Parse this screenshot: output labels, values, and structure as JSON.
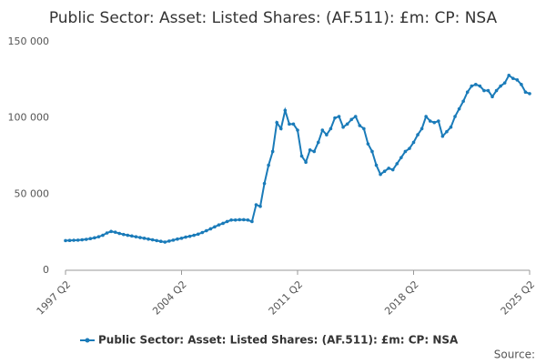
{
  "chart_data": {
    "type": "line",
    "title": "Public Sector: Asset: Listed Shares: (AF.511): £m: CP: NSA",
    "categories": [
      "1997 Q2",
      null,
      null,
      null,
      null,
      null,
      null,
      null,
      null,
      null,
      null,
      null,
      null,
      null,
      null,
      null,
      null,
      null,
      null,
      null,
      null,
      null,
      null,
      null,
      null,
      null,
      null,
      null,
      "2004 Q2",
      null,
      null,
      null,
      null,
      null,
      null,
      null,
      null,
      null,
      null,
      null,
      null,
      null,
      null,
      null,
      null,
      null,
      null,
      null,
      null,
      null,
      null,
      null,
      null,
      null,
      null,
      null,
      "2011 Q2",
      null,
      null,
      null,
      null,
      null,
      null,
      null,
      null,
      null,
      null,
      null,
      null,
      null,
      null,
      null,
      null,
      null,
      null,
      null,
      null,
      null,
      null,
      null,
      null,
      null,
      null,
      null,
      "2018 Q2",
      null,
      null,
      null,
      null,
      null,
      null,
      null,
      null,
      null,
      null,
      null,
      null,
      null,
      null,
      null,
      null,
      null,
      null,
      null,
      null,
      null,
      null,
      null,
      null,
      null,
      null,
      null,
      "2025 Q2"
    ],
    "series": [
      {
        "name": "Public Sector: Asset: Listed Shares: (AF.511): £m: CP: NSA",
        "color": "#1a7bb9",
        "values": [
          19500,
          19600,
          19700,
          19800,
          20000,
          20300,
          20800,
          21300,
          22000,
          23000,
          24500,
          25500,
          25000,
          24200,
          23500,
          23000,
          22500,
          22000,
          21500,
          21000,
          20500,
          20000,
          19500,
          19000,
          18500,
          19200,
          19800,
          20500,
          21000,
          21800,
          22300,
          23000,
          23700,
          24800,
          26000,
          27200,
          28500,
          29800,
          30800,
          32000,
          33000,
          33000,
          33200,
          33200,
          33000,
          32000,
          43000,
          42000,
          57000,
          69000,
          78000,
          97000,
          93000,
          105000,
          96000,
          96000,
          92000,
          75000,
          71000,
          79000,
          78000,
          84000,
          92000,
          89000,
          93000,
          100000,
          101000,
          94000,
          96000,
          99000,
          101000,
          95000,
          93000,
          83000,
          78000,
          69000,
          63000,
          65000,
          67000,
          66000,
          70000,
          74000,
          78000,
          80000,
          84000,
          89000,
          93000,
          101000,
          98000,
          97000,
          98000,
          88000,
          91000,
          94000,
          101000,
          106000,
          111000,
          117000,
          121000,
          122000,
          121000,
          118000,
          118000,
          114000,
          118000,
          121000,
          123000,
          128000,
          126000,
          125000,
          122000,
          117000,
          116000
        ]
      }
    ],
    "ylim": [
      0,
      150000
    ],
    "yticks": [
      0,
      {
        "value": 50000,
        "label": "50 000"
      },
      {
        "value": 100000,
        "label": "100 000"
      },
      {
        "value": 150000,
        "label": "150 000"
      }
    ],
    "grid": false,
    "legend": "bottom",
    "source": "Source:"
  }
}
